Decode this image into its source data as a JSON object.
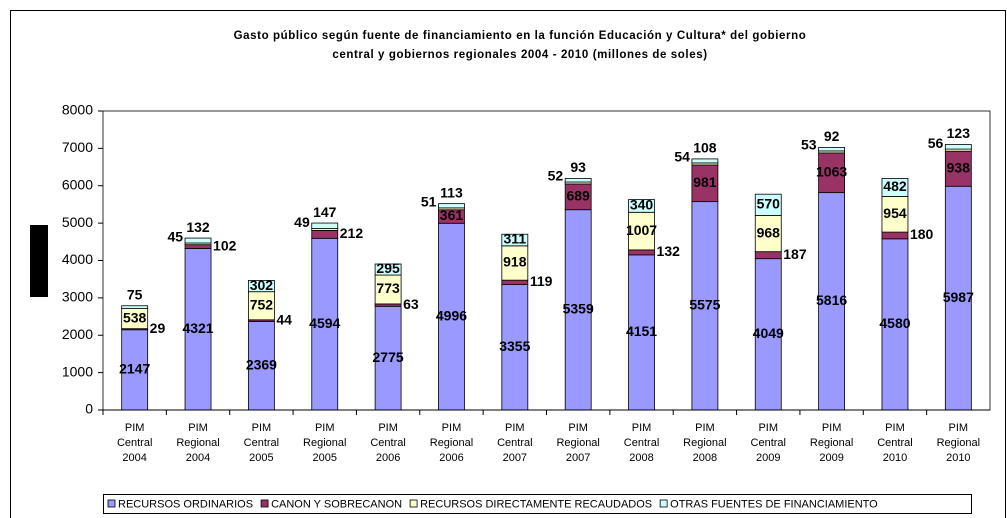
{
  "chart_data": {
    "type": "stacked_bar",
    "title": [
      "Gasto público según fuente de financiamiento en la función Educación y Cultura* del gobierno",
      "central y gobiernos regionales 2004 - 2010 (millones de soles)"
    ],
    "categories": [
      [
        "PIM",
        "Central",
        "2004"
      ],
      [
        "PIM",
        "Regional",
        "2004"
      ],
      [
        "PIM",
        "Central",
        "2005"
      ],
      [
        "PIM",
        "Regional",
        "2005"
      ],
      [
        "PIM",
        "Central",
        "2006"
      ],
      [
        "PIM",
        "Regional",
        "2006"
      ],
      [
        "PIM",
        "Central",
        "2007"
      ],
      [
        "PIM",
        "Regional",
        "2007"
      ],
      [
        "PIM",
        "Central",
        "2008"
      ],
      [
        "PIM",
        "Regional",
        "2008"
      ],
      [
        "PIM",
        "Central",
        "2009"
      ],
      [
        "PIM",
        "Regional",
        "2009"
      ],
      [
        "PIM",
        "Central",
        "2010"
      ],
      [
        "PIM",
        "Regional",
        "2010"
      ]
    ],
    "series": [
      {
        "name": "RECURSOS ORDINARIOS",
        "color": "#9999ff",
        "values": [
          2147,
          4321,
          2369,
          4594,
          2775,
          4996,
          3355,
          5359,
          4151,
          5575,
          4049,
          5816,
          4580,
          5987
        ]
      },
      {
        "name": "CANON Y SOBRECANON",
        "color": "#993366",
        "values": [
          29,
          102,
          44,
          212,
          63,
          361,
          119,
          689,
          132,
          981,
          187,
          1063,
          180,
          938
        ]
      },
      {
        "name": "RECURSOS DIRECTAMENTE RECAUDADOS",
        "color": "#ffffcc",
        "values": [
          538,
          45,
          752,
          49,
          773,
          51,
          918,
          52,
          1007,
          54,
          968,
          53,
          954,
          56
        ]
      },
      {
        "name": "OTRAS FUENTES DE FINANCIAMIENTO",
        "color": "#ccffff",
        "values": [
          75,
          132,
          302,
          147,
          295,
          113,
          311,
          93,
          340,
          108,
          570,
          92,
          482,
          123
        ]
      }
    ],
    "ylim": [
      0,
      8000
    ],
    "yticks": [
      0,
      1000,
      2000,
      3000,
      4000,
      5000,
      6000,
      7000,
      8000
    ],
    "grid": false
  }
}
